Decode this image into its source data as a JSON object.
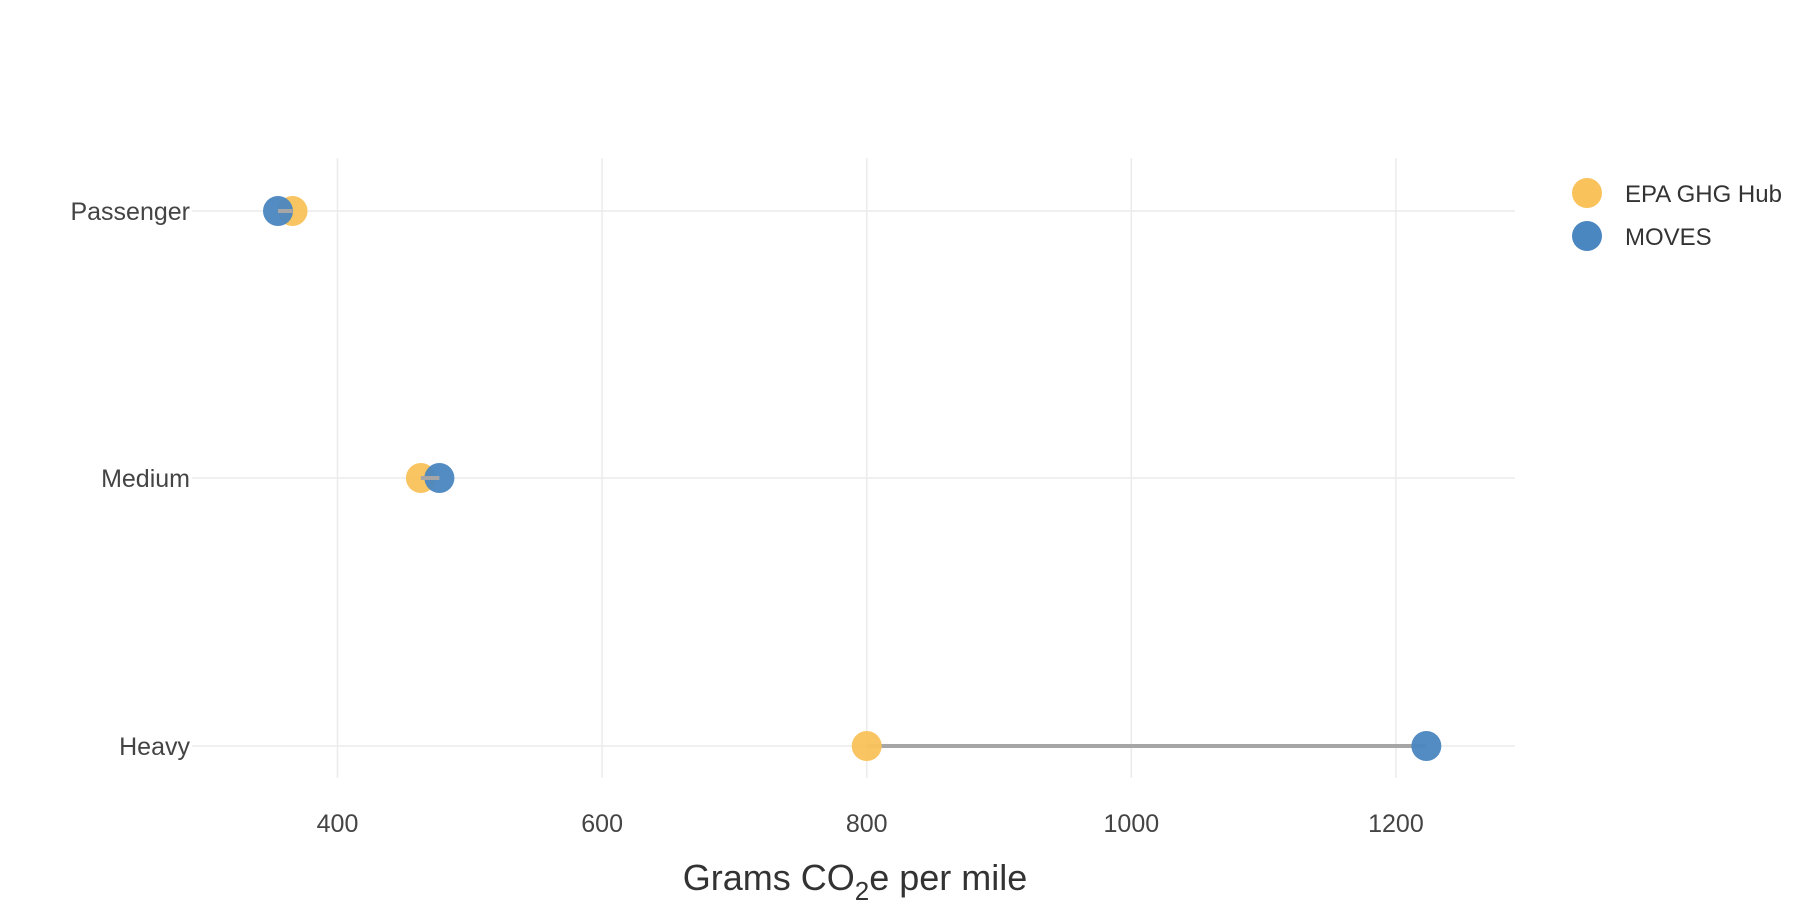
{
  "chart_data": {
    "type": "dumbbell",
    "categories": [
      "Passenger",
      "Medium",
      "Heavy"
    ],
    "series": [
      {
        "name": "EPA GHG Hub",
        "color": "#F9C25A",
        "values": [
          366,
          463,
          800
        ]
      },
      {
        "name": "MOVES",
        "color": "#4A86C0",
        "values": [
          355,
          477,
          1223
        ]
      }
    ],
    "xlabel": {
      "prefix": "Grams CO",
      "subscript": "2",
      "suffix": "e per mile"
    },
    "xlim": [
      290,
      1290
    ],
    "xticks": [
      400,
      600,
      800,
      1000,
      1200
    ],
    "grid": true,
    "legend_position": "top-right",
    "connector_color": "#A6A6A6",
    "grid_color": "#EBEBEB"
  }
}
